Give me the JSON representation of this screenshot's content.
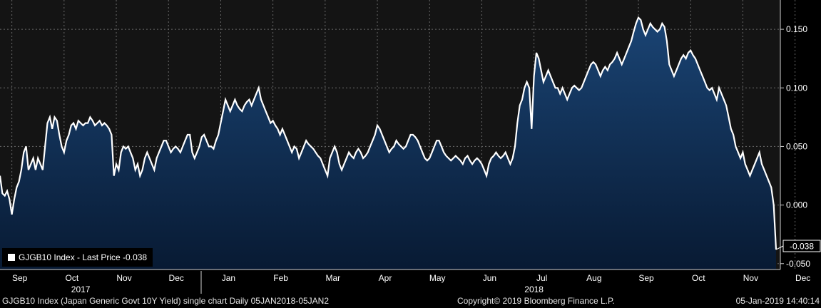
{
  "chart_data": {
    "type": "area",
    "title": "",
    "xlabel": "",
    "ylabel": "",
    "ylim": [
      -0.055,
      0.175
    ],
    "y_ticks": [
      "0.150",
      "0.100",
      "0.050",
      "0.000",
      "-0.050"
    ],
    "y_tick_values": [
      0.15,
      0.1,
      0.05,
      0.0,
      -0.05
    ],
    "month_ticks": [
      "Sep",
      "Oct",
      "Nov",
      "Dec",
      "Jan",
      "Feb",
      "Mar",
      "Apr",
      "May",
      "Jun",
      "Jul",
      "Aug",
      "Sep",
      "Oct",
      "Nov",
      "Dec"
    ],
    "month_tick_index": [
      5,
      27,
      49,
      71,
      93,
      115,
      137,
      159,
      181,
      203,
      225,
      247,
      269,
      291,
      313,
      335
    ],
    "year_labels": [
      "2017",
      "2018"
    ],
    "year_label_index": [
      34,
      225
    ],
    "last_value_label": "-0.038",
    "last_value": -0.038,
    "series": [
      {
        "name": "GJGB10 Index - Last Price -0.038",
        "color": "#ffffff",
        "fill_top": "#1a4474",
        "fill_bottom": "#081a33",
        "values": [
          0.025,
          0.01,
          0.008,
          0.012,
          0.005,
          -0.008,
          0.005,
          0.015,
          0.02,
          0.03,
          0.045,
          0.05,
          0.03,
          0.035,
          0.04,
          0.03,
          0.04,
          0.035,
          0.03,
          0.05,
          0.07,
          0.075,
          0.065,
          0.075,
          0.072,
          0.06,
          0.05,
          0.045,
          0.055,
          0.06,
          0.068,
          0.07,
          0.065,
          0.072,
          0.07,
          0.068,
          0.07,
          0.07,
          0.075,
          0.072,
          0.068,
          0.07,
          0.072,
          0.068,
          0.07,
          0.068,
          0.065,
          0.06,
          0.025,
          0.035,
          0.03,
          0.045,
          0.05,
          0.048,
          0.05,
          0.045,
          0.04,
          0.03,
          0.035,
          0.025,
          0.03,
          0.04,
          0.045,
          0.04,
          0.035,
          0.03,
          0.04,
          0.045,
          0.05,
          0.055,
          0.055,
          0.05,
          0.045,
          0.048,
          0.05,
          0.048,
          0.045,
          0.05,
          0.055,
          0.06,
          0.06,
          0.045,
          0.04,
          0.045,
          0.05,
          0.058,
          0.06,
          0.055,
          0.05,
          0.05,
          0.048,
          0.055,
          0.06,
          0.07,
          0.08,
          0.09,
          0.085,
          0.08,
          0.085,
          0.09,
          0.085,
          0.082,
          0.08,
          0.085,
          0.088,
          0.09,
          0.085,
          0.09,
          0.095,
          0.1,
          0.09,
          0.085,
          0.08,
          0.075,
          0.07,
          0.072,
          0.068,
          0.065,
          0.06,
          0.065,
          0.06,
          0.055,
          0.05,
          0.045,
          0.05,
          0.048,
          0.04,
          0.045,
          0.05,
          0.055,
          0.052,
          0.05,
          0.048,
          0.045,
          0.042,
          0.04,
          0.035,
          0.03,
          0.025,
          0.04,
          0.045,
          0.05,
          0.045,
          0.035,
          0.03,
          0.035,
          0.04,
          0.045,
          0.042,
          0.04,
          0.045,
          0.048,
          0.045,
          0.04,
          0.042,
          0.045,
          0.05,
          0.055,
          0.06,
          0.068,
          0.065,
          0.06,
          0.055,
          0.05,
          0.045,
          0.048,
          0.05,
          0.055,
          0.052,
          0.05,
          0.048,
          0.05,
          0.055,
          0.06,
          0.06,
          0.058,
          0.055,
          0.05,
          0.045,
          0.04,
          0.038,
          0.04,
          0.045,
          0.05,
          0.055,
          0.055,
          0.05,
          0.045,
          0.042,
          0.04,
          0.038,
          0.04,
          0.042,
          0.04,
          0.038,
          0.035,
          0.04,
          0.042,
          0.038,
          0.035,
          0.038,
          0.04,
          0.038,
          0.035,
          0.03,
          0.025,
          0.035,
          0.04,
          0.042,
          0.045,
          0.042,
          0.04,
          0.042,
          0.045,
          0.04,
          0.035,
          0.04,
          0.05,
          0.07,
          0.085,
          0.09,
          0.1,
          0.105,
          0.1,
          0.065,
          0.11,
          0.13,
          0.125,
          0.115,
          0.105,
          0.11,
          0.115,
          0.11,
          0.105,
          0.1,
          0.1,
          0.095,
          0.1,
          0.095,
          0.09,
          0.095,
          0.1,
          0.102,
          0.1,
          0.098,
          0.1,
          0.105,
          0.11,
          0.115,
          0.12,
          0.122,
          0.12,
          0.115,
          0.11,
          0.115,
          0.118,
          0.115,
          0.12,
          0.122,
          0.125,
          0.13,
          0.125,
          0.12,
          0.125,
          0.13,
          0.135,
          0.14,
          0.148,
          0.155,
          0.16,
          0.158,
          0.15,
          0.145,
          0.15,
          0.155,
          0.152,
          0.15,
          0.148,
          0.15,
          0.155,
          0.152,
          0.14,
          0.12,
          0.115,
          0.11,
          0.115,
          0.12,
          0.125,
          0.128,
          0.125,
          0.13,
          0.132,
          0.128,
          0.125,
          0.12,
          0.115,
          0.11,
          0.105,
          0.1,
          0.098,
          0.1,
          0.095,
          0.09,
          0.1,
          0.095,
          0.09,
          0.085,
          0.075,
          0.065,
          0.06,
          0.05,
          0.045,
          0.04,
          0.045,
          0.035,
          0.03,
          0.025,
          0.03,
          0.035,
          0.04,
          0.045,
          0.035,
          0.03,
          0.025,
          0.02,
          0.015,
          0.0,
          -0.038
        ]
      }
    ]
  },
  "footer": {
    "left": "GJGB10 Index (Japan Generic Govt 10Y Yield) single chart  Daily 05JAN2018-05JAN2",
    "center": "Copyright© 2019 Bloomberg Finance L.P.",
    "right": "05-Jan-2019 14:40:14"
  }
}
